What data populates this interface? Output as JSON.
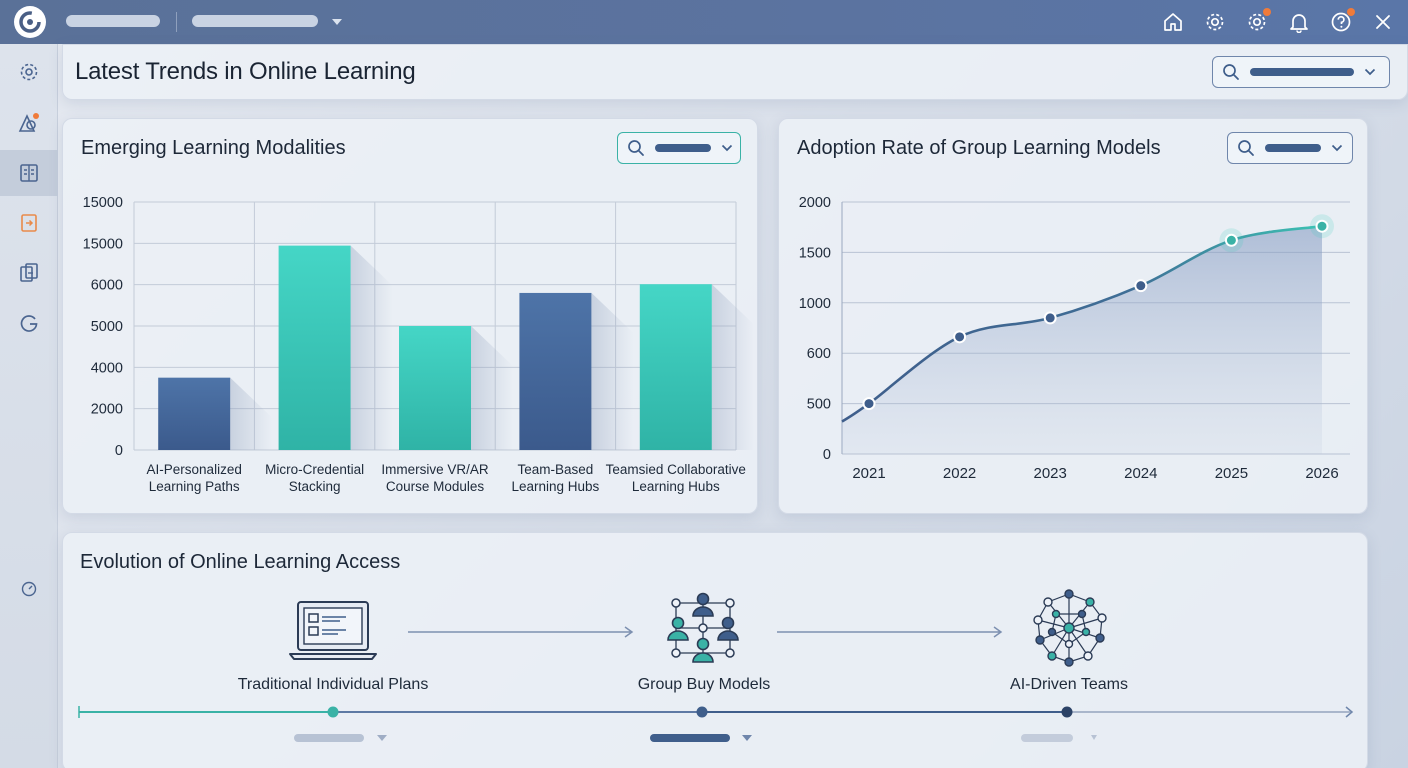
{
  "page": {
    "title": "Latest Trends in Online Learning"
  },
  "topbar": {
    "icons": [
      "home-icon",
      "settings-icon",
      "settings-alert-icon",
      "bell-icon",
      "help-icon",
      "close-icon"
    ]
  },
  "sidebar": {
    "items": [
      {
        "icon": "settings-icon"
      },
      {
        "icon": "shapes-icon"
      },
      {
        "icon": "book-icon",
        "active": true
      },
      {
        "icon": "document-export-icon"
      },
      {
        "icon": "document-swap-icon"
      },
      {
        "icon": "refresh-g-icon"
      },
      {
        "icon": "timer-icon"
      }
    ]
  },
  "colors": {
    "navy": "#3f5e8b",
    "teal": "#3ccdbd",
    "topbar": "#5a7198"
  },
  "chart_data": [
    {
      "type": "bar",
      "title": "Emerging Learning Modalities",
      "categories": [
        "AI-Personalized Learning Paths",
        "Micro-Credential Stacking",
        "Immersive VR/AR Course Modules",
        "Team-Based Learning Hubs",
        "Teamsied Collaborative Learning Hubs"
      ],
      "category_lines": [
        [
          "AI-Personalized",
          "Learning Paths"
        ],
        [
          "Micro-Credential",
          "Stacking"
        ],
        [
          "Immersive VR/AR",
          "Course Modules"
        ],
        [
          "Team-Based",
          "Learning Hubs"
        ],
        [
          "Teamsied Collaborative",
          "Learning Hubs"
        ]
      ],
      "y_tick_labels": [
        "0",
        "2000",
        "4000",
        "5000",
        "6000",
        "15000",
        "15000"
      ],
      "values": [
        3500,
        14500,
        5000,
        5800,
        6100
      ],
      "bar_colors": [
        "navy",
        "teal",
        "teal",
        "navy",
        "teal"
      ],
      "grid": true
    },
    {
      "type": "area",
      "title": "Adoption Rate of Group Learning Models",
      "x": [
        "2021",
        "2022",
        "2023",
        "2024",
        "2025",
        "2026"
      ],
      "y_tick_labels": [
        "0",
        "500",
        "600",
        "1000",
        "1500",
        "2000"
      ],
      "values": [
        500,
        730,
        880,
        1170,
        1620,
        1760
      ],
      "grid": true
    }
  ],
  "timeline": {
    "title": "Evolution of Online Learning Access",
    "stages": [
      {
        "label": "Traditional Individual Plans",
        "icon": "laptop-list-icon"
      },
      {
        "label": "Group Buy Models",
        "icon": "group-network-icon"
      },
      {
        "label": "AI-Driven Teams",
        "icon": "neural-network-icon"
      }
    ]
  }
}
